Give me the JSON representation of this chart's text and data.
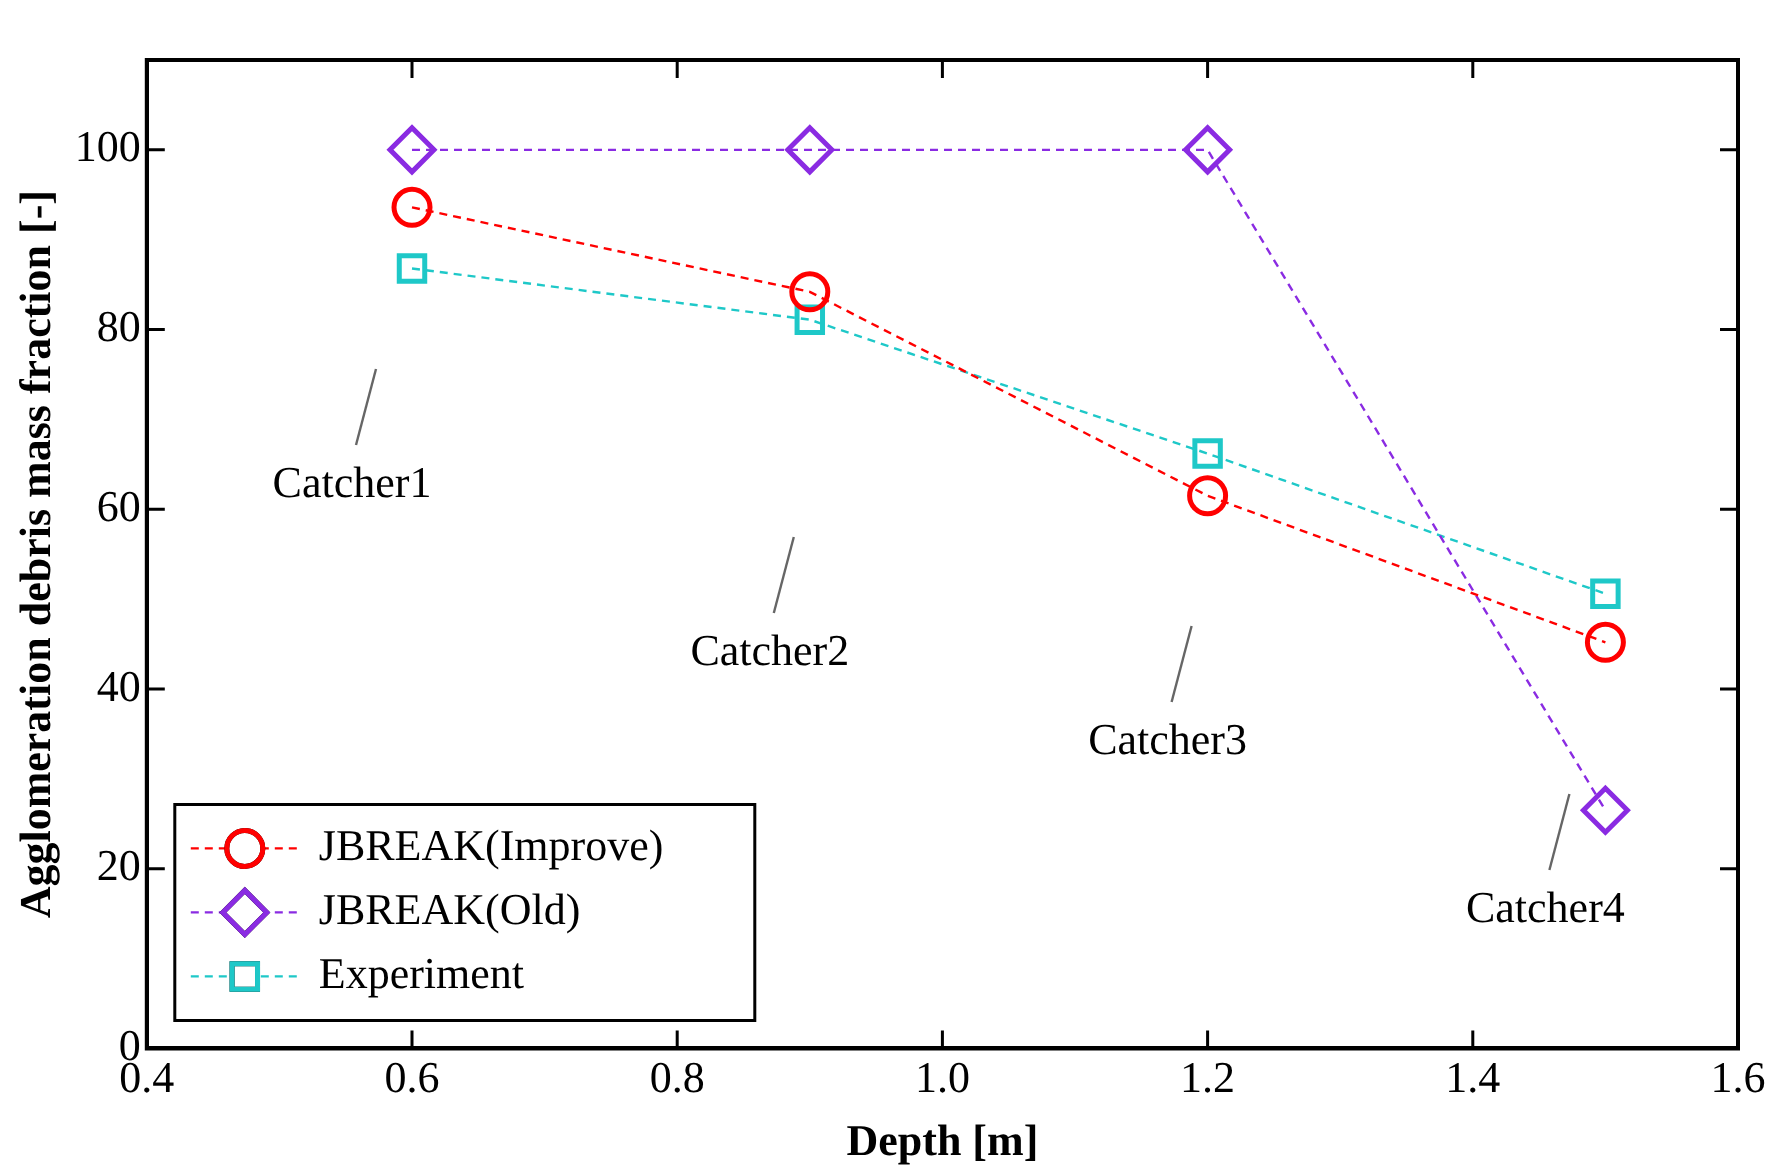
{
  "chart_data": {
    "type": "line",
    "xlabel": "Depth [m]",
    "ylabel": "Agglomeration debris mass fraction [-]",
    "x": [
      0.6,
      0.9,
      1.2,
      1.5
    ],
    "series": [
      {
        "name": "JBREAK(Improve)",
        "color": "#ff0000",
        "marker": "circle",
        "values": [
          93.6,
          84.2,
          61.5,
          45.2
        ]
      },
      {
        "name": "JBREAK(Old)",
        "color": "#8a2be2",
        "marker": "diamond",
        "values": [
          100,
          100,
          100,
          26.5
        ]
      },
      {
        "name": "Experiment",
        "color": "#1ec8c8",
        "marker": "square",
        "values": [
          86.8,
          81.1,
          66.2,
          50.6
        ]
      }
    ],
    "xlim": [
      0.4,
      1.6
    ],
    "xticks": [
      0.4,
      0.6,
      0.8,
      {
        "value": 1,
        "label": "1.0"
      },
      1.2,
      1.4,
      1.6
    ],
    "ylim": [
      0,
      110
    ],
    "yticks": [
      0,
      20,
      40,
      60,
      80,
      100
    ],
    "line_style": "dashed",
    "grid": false,
    "legend": "bottom left",
    "annotations": [
      "Catcher1",
      "Catcher2",
      "Catcher3",
      "Catcher4"
    ]
  }
}
